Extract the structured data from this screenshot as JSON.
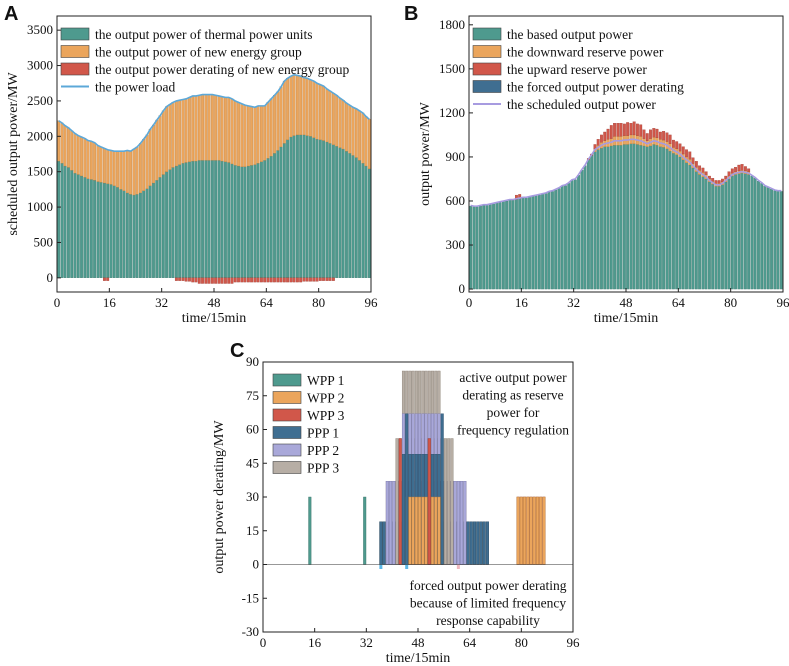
{
  "chart_data": [
    {
      "id": "A",
      "panel_letter": "A",
      "type": "bar",
      "stacked": true,
      "x_range": [
        0,
        96
      ],
      "y_range": [
        -200,
        3700
      ],
      "x_ticks": [
        0,
        16,
        32,
        48,
        64,
        80,
        96
      ],
      "y_ticks": [
        0,
        500,
        1000,
        1500,
        2000,
        2500,
        3000,
        3500
      ],
      "xlabel": "time/15min",
      "ylabel": "scheduled output power/MW",
      "legend_position": "top-right",
      "legend": [
        "the output power of thermal power units",
        "the output power of new energy group",
        "the output power derating of new energy group",
        "the power load"
      ],
      "colors": {
        "thermal": "#4e9a8e",
        "new_energy": "#eba55c",
        "derating": "#d1574a",
        "load": "#5ca8d8"
      },
      "series": {
        "thermal": [
          1650,
          1620,
          1580,
          1560,
          1520,
          1480,
          1460,
          1440,
          1420,
          1400,
          1390,
          1380,
          1360,
          1350,
          1340,
          1330,
          1320,
          1300,
          1280,
          1250,
          1230,
          1200,
          1180,
          1170,
          1180,
          1200,
          1230,
          1260,
          1300,
          1340,
          1380,
          1420,
          1460,
          1500,
          1530,
          1560,
          1580,
          1600,
          1620,
          1630,
          1640,
          1650,
          1650,
          1660,
          1660,
          1660,
          1660,
          1660,
          1660,
          1660,
          1650,
          1640,
          1630,
          1610,
          1590,
          1580,
          1570,
          1570,
          1580,
          1590,
          1600,
          1620,
          1640,
          1660,
          1690,
          1720,
          1760,
          1800,
          1850,
          1900,
          1950,
          1990,
          2010,
          2020,
          2020,
          2020,
          2010,
          2000,
          1980,
          1960,
          1950,
          1940,
          1920,
          1900,
          1880,
          1860,
          1840,
          1820,
          1790,
          1760,
          1730,
          1700,
          1660,
          1620,
          1580,
          1540
        ],
        "new_energy": [
          570,
          570,
          570,
          560,
          560,
          560,
          550,
          550,
          550,
          540,
          540,
          530,
          510,
          500,
          490,
          480,
          480,
          490,
          510,
          540,
          560,
          600,
          610,
          650,
          670,
          700,
          730,
          760,
          800,
          820,
          850,
          870,
          900,
          920,
          920,
          920,
          920,
          910,
          900,
          900,
          910,
          920,
          920,
          920,
          930,
          930,
          930,
          930,
          920,
          910,
          910,
          910,
          920,
          920,
          910,
          900,
          890,
          870,
          850,
          830,
          810,
          810,
          790,
          770,
          790,
          810,
          820,
          830,
          850,
          880,
          870,
          860,
          860,
          840,
          830,
          810,
          810,
          800,
          800,
          790,
          780,
          770,
          750,
          740,
          730,
          720,
          700,
          690,
          680,
          680,
          680,
          690,
          700,
          710,
          700,
          700
        ],
        "derating": [
          0,
          0,
          0,
          0,
          0,
          0,
          0,
          0,
          0,
          0,
          0,
          0,
          0,
          0,
          40,
          40,
          0,
          0,
          0,
          0,
          0,
          0,
          0,
          0,
          0,
          0,
          0,
          0,
          0,
          0,
          0,
          0,
          0,
          0,
          0,
          0,
          40,
          40,
          40,
          50,
          50,
          60,
          60,
          80,
          80,
          80,
          80,
          80,
          80,
          80,
          80,
          80,
          80,
          80,
          60,
          60,
          60,
          60,
          60,
          60,
          60,
          60,
          60,
          60,
          60,
          60,
          60,
          60,
          60,
          60,
          60,
          60,
          60,
          60,
          60,
          50,
          50,
          50,
          50,
          50,
          40,
          40,
          40,
          40,
          40,
          0,
          0,
          0,
          0,
          0,
          0,
          0,
          0,
          0,
          0,
          0
        ],
        "load": [
          2220,
          2190,
          2150,
          2120,
          2080,
          2040,
          2010,
          1990,
          1970,
          1940,
          1930,
          1910,
          1870,
          1850,
          1830,
          1810,
          1800,
          1790,
          1790,
          1790,
          1790,
          1800,
          1790,
          1820,
          1850,
          1900,
          1960,
          2020,
          2100,
          2160,
          2230,
          2290,
          2360,
          2420,
          2450,
          2480,
          2500,
          2510,
          2520,
          2530,
          2550,
          2570,
          2570,
          2580,
          2590,
          2590,
          2590,
          2590,
          2580,
          2570,
          2560,
          2550,
          2550,
          2530,
          2500,
          2480,
          2460,
          2440,
          2430,
          2420,
          2410,
          2430,
          2430,
          2430,
          2480,
          2530,
          2580,
          2630,
          2700,
          2780,
          2820,
          2850,
          2870,
          2860,
          2850,
          2830,
          2820,
          2800,
          2780,
          2750,
          2730,
          2710,
          2670,
          2640,
          2610,
          2580,
          2540,
          2510,
          2470,
          2440,
          2410,
          2390,
          2360,
          2330,
          2280,
          2240
        ]
      }
    },
    {
      "id": "B",
      "panel_letter": "B",
      "type": "bar",
      "stacked": true,
      "x_range": [
        0,
        96
      ],
      "y_range": [
        -20,
        1860
      ],
      "x_ticks": [
        0,
        16,
        32,
        48,
        64,
        80,
        96
      ],
      "y_ticks": [
        0,
        300,
        600,
        900,
        1200,
        1500,
        1800
      ],
      "xlabel": "time/15min",
      "ylabel": "output power/MW",
      "legend_position": "top-left",
      "legend": [
        "the based output power",
        "the downward reserve power",
        "the upward reserve power",
        "the forced output power derating",
        "the scheduled output power"
      ],
      "colors": {
        "base": "#4e9a8e",
        "down": "#eba55c",
        "up": "#d1574a",
        "forced": "#3f6e91",
        "scheduled": "#a79be0"
      },
      "series": {
        "base": [
          565,
          560,
          560,
          565,
          570,
          570,
          575,
          580,
          585,
          590,
          595,
          600,
          605,
          605,
          610,
          615,
          620,
          620,
          625,
          630,
          635,
          640,
          645,
          650,
          660,
          665,
          675,
          685,
          700,
          705,
          720,
          740,
          745,
          775,
          810,
          840,
          880,
          910,
          935,
          950,
          960,
          970,
          970,
          975,
          980,
          980,
          980,
          985,
          985,
          990,
          990,
          985,
          980,
          975,
          970,
          975,
          985,
          980,
          970,
          965,
          955,
          940,
          925,
          915,
          900,
          880,
          860,
          845,
          825,
          800,
          780,
          765,
          750,
          730,
          715,
          700,
          700,
          710,
          730,
          750,
          770,
          780,
          785,
          790,
          785,
          780,
          770,
          755,
          735,
          720,
          700,
          690,
          680,
          670,
          665,
          665
        ],
        "down": [
          0,
          0,
          0,
          0,
          0,
          0,
          0,
          0,
          0,
          0,
          0,
          0,
          0,
          0,
          0,
          0,
          0,
          0,
          0,
          0,
          0,
          0,
          0,
          0,
          0,
          0,
          0,
          0,
          0,
          0,
          0,
          0,
          0,
          0,
          0,
          0,
          0,
          0,
          20,
          30,
          40,
          40,
          50,
          50,
          60,
          60,
          60,
          60,
          60,
          60,
          60,
          60,
          60,
          50,
          40,
          50,
          50,
          50,
          50,
          50,
          50,
          50,
          40,
          40,
          40,
          40,
          40,
          40,
          30,
          30,
          30,
          30,
          30,
          20,
          20,
          20,
          20,
          20,
          20,
          20,
          20,
          20,
          20,
          20,
          20,
          20,
          0,
          0,
          0,
          0,
          0,
          0,
          0,
          0,
          0,
          0
        ],
        "up": [
          0,
          0,
          0,
          0,
          0,
          0,
          0,
          0,
          0,
          0,
          0,
          0,
          0,
          0,
          30,
          30,
          0,
          0,
          0,
          0,
          0,
          0,
          0,
          0,
          0,
          0,
          0,
          0,
          0,
          0,
          0,
          0,
          0,
          0,
          0,
          0,
          10,
          10,
          30,
          40,
          50,
          60,
          70,
          90,
          90,
          90,
          90,
          80,
          90,
          80,
          90,
          80,
          80,
          60,
          50,
          60,
          60,
          60,
          50,
          60,
          60,
          60,
          50,
          50,
          50,
          50,
          50,
          50,
          40,
          40,
          30,
          30,
          20,
          20,
          20,
          20,
          20,
          20,
          20,
          30,
          30,
          30,
          40,
          40,
          30,
          20,
          0,
          0,
          0,
          0,
          0,
          0,
          0,
          0,
          0,
          0
        ],
        "forced": [
          0,
          0,
          0,
          0,
          0,
          0,
          0,
          0,
          0,
          0,
          0,
          0,
          0,
          0,
          0,
          0,
          0,
          0,
          0,
          0,
          0,
          0,
          0,
          0,
          0,
          0,
          0,
          0,
          0,
          0,
          0,
          0,
          0,
          0,
          0,
          0,
          0,
          0,
          0,
          0,
          0,
          0,
          0,
          0,
          0,
          0,
          0,
          0,
          0,
          0,
          0,
          0,
          0,
          0,
          0,
          0,
          0,
          0,
          0,
          0,
          0,
          0,
          0,
          0,
          0,
          0,
          0,
          0,
          0,
          0,
          0,
          0,
          0,
          0,
          0,
          0,
          0,
          0,
          0,
          0,
          0,
          0,
          0,
          0,
          0,
          0,
          0,
          0,
          0,
          0,
          0,
          0,
          0,
          0,
          0,
          0
        ],
        "scheduled": [
          570,
          565,
          565,
          570,
          575,
          575,
          580,
          585,
          590,
          595,
          600,
          605,
          610,
          610,
          615,
          620,
          625,
          625,
          630,
          635,
          640,
          645,
          650,
          655,
          665,
          670,
          680,
          690,
          705,
          710,
          725,
          745,
          750,
          780,
          815,
          845,
          885,
          915,
          950,
          965,
          980,
          990,
          995,
          1000,
          1010,
          1010,
          1010,
          1015,
          1015,
          1020,
          1020,
          1015,
          1010,
          1000,
          990,
          1000,
          1010,
          1005,
          995,
          990,
          980,
          965,
          945,
          935,
          920,
          900,
          880,
          865,
          840,
          815,
          795,
          780,
          765,
          740,
          725,
          710,
          710,
          720,
          740,
          760,
          780,
          790,
          795,
          800,
          795,
          790,
          775,
          760,
          740,
          725,
          705,
          695,
          685,
          675,
          670,
          670
        ]
      }
    },
    {
      "id": "C",
      "panel_letter": "C",
      "type": "bar",
      "stacked": false,
      "x_range": [
        0,
        96
      ],
      "y_range": [
        -30,
        90
      ],
      "x_ticks": [
        0,
        16,
        32,
        48,
        64,
        80,
        96
      ],
      "y_ticks": [
        -30,
        -15,
        0,
        15,
        30,
        45,
        60,
        75,
        90
      ],
      "xlabel": "time/15min",
      "ylabel": "output power derating/MW",
      "legend_position": "top-left",
      "legend": [
        "WPP 1",
        "WPP 2",
        "WPP 3",
        "PPP 1",
        "PPP 2",
        "PPP 3"
      ],
      "colors": {
        "WPP 1": "#4e9a8e",
        "WPP 2": "#eba55c",
        "WPP 3": "#d1574a",
        "PPP 1": "#3f6e91",
        "PPP 2": "#a9a8d9",
        "PPP 3": "#b7aea5"
      },
      "annotation_top": [
        "active output power",
        "derating as reserve",
        "power for",
        "frequency regulation"
      ],
      "annotation_bottom": [
        "forced output power derating",
        "because of limited frequency",
        "response capability"
      ],
      "bars": [
        {
          "series": "WPP 1",
          "from": 14,
          "to": 15,
          "value": 30
        },
        {
          "series": "WPP 1",
          "from": 31,
          "to": 32,
          "value": 30
        },
        {
          "series": "PPP 3",
          "from": 36,
          "to": 70,
          "value": 19
        },
        {
          "series": "PPP 1",
          "from": 36,
          "to": 70,
          "value": 19
        },
        {
          "series": "PPP 3",
          "from": 38,
          "to": 63,
          "value": 37
        },
        {
          "series": "PPP 2",
          "from": 38,
          "to": 63,
          "value": 37
        },
        {
          "series": "PPP 3",
          "from": 41,
          "to": 59,
          "value": 56
        },
        {
          "series": "PPP 3",
          "from": 43,
          "to": 55,
          "value": 86
        },
        {
          "series": "PPP 2",
          "from": 43,
          "to": 55,
          "value": 67
        },
        {
          "series": "PPP 1",
          "from": 43,
          "to": 55,
          "value": 49
        },
        {
          "series": "WPP 2",
          "from": 44,
          "to": 56,
          "value": 30
        },
        {
          "series": "WPP 3",
          "from": 78.5,
          "to": 87.5,
          "value": 30
        },
        {
          "series": "WPP 2",
          "from": 78.5,
          "to": 87.5,
          "value": 30
        },
        {
          "series": "WPP 3",
          "from": 42,
          "to": 43,
          "value": 56
        },
        {
          "series": "WPP 3",
          "from": 51,
          "to": 52,
          "value": 56
        },
        {
          "series": "PPP 1",
          "from": 44,
          "to": 45,
          "value": 67
        },
        {
          "series": "PPP 1",
          "from": 55,
          "to": 56,
          "value": 67
        }
      ],
      "negative_marks": [
        {
          "series": "PPP 1",
          "x": 36.5,
          "value": -2
        },
        {
          "series": "PPP 2",
          "x": 44.5,
          "value": -2
        },
        {
          "series": "WPP 3",
          "x": 60.5,
          "value": -2
        }
      ]
    }
  ]
}
